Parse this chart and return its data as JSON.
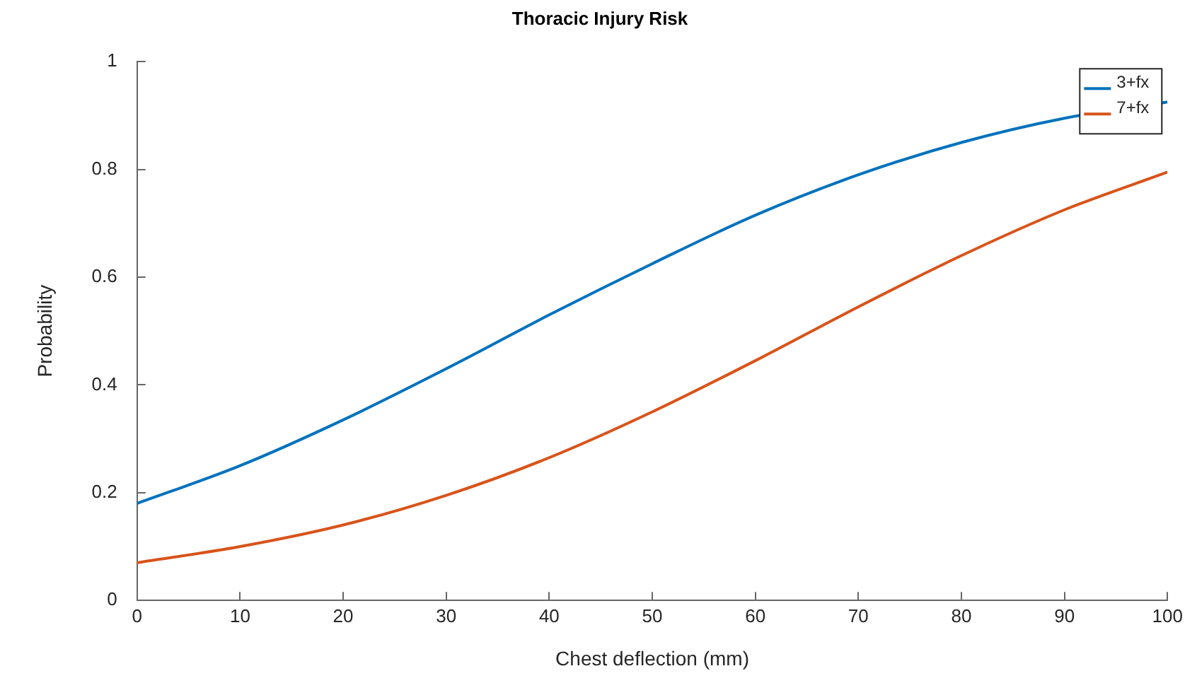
{
  "chart_data": {
    "type": "line",
    "title": "Thoracic Injury Risk",
    "xlabel": "Chest deflection (mm)",
    "ylabel": "Probability",
    "x": [
      0,
      10,
      20,
      30,
      40,
      50,
      60,
      70,
      80,
      90,
      100
    ],
    "series": [
      {
        "name": "3+fx",
        "color": "#0072bd",
        "values": [
          0.18,
          0.25,
          0.335,
          0.43,
          0.53,
          0.625,
          0.715,
          0.79,
          0.85,
          0.895,
          0.925
        ]
      },
      {
        "name": "7+fx",
        "color": "#d95319",
        "values": [
          0.07,
          0.1,
          0.14,
          0.195,
          0.265,
          0.35,
          0.445,
          0.545,
          0.64,
          0.725,
          0.795
        ]
      }
    ],
    "xlim": [
      0,
      100
    ],
    "xticks": [
      0,
      10,
      20,
      30,
      40,
      50,
      60,
      70,
      80,
      90,
      100
    ],
    "ylim": [
      0,
      1
    ],
    "yticks": [
      0,
      0.2,
      0.4,
      0.6,
      0.8,
      1
    ],
    "grid": false,
    "legend": "top right",
    "marker": "none",
    "line_style": "solid"
  }
}
